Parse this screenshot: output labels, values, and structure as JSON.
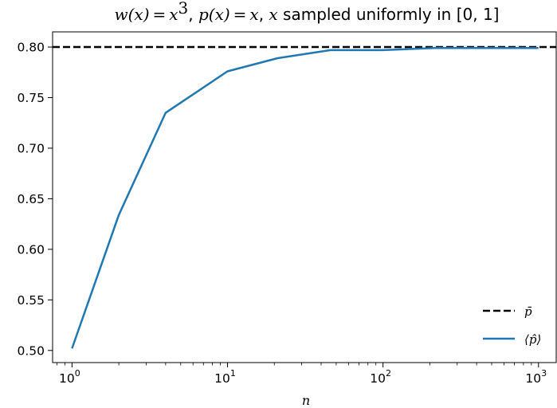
{
  "chart_data": {
    "type": "line",
    "title": {
      "w_part": "w(x) = x",
      "w_exp": "3",
      "sep1": ", ",
      "p_part": "p(x) = x",
      "sep2": ", ",
      "x_var": "x",
      "rest": " sampled uniformly in [0, 1]"
    },
    "xlabel": "n",
    "ylabel": "",
    "xscale": "log",
    "xlim": [
      0.75,
      1300
    ],
    "ylim": [
      0.488,
      0.815
    ],
    "x_ticks": [
      {
        "base": "10",
        "exp": "0",
        "value": 1
      },
      {
        "base": "10",
        "exp": "1",
        "value": 10
      },
      {
        "base": "10",
        "exp": "2",
        "value": 100
      },
      {
        "base": "10",
        "exp": "3",
        "value": 1000
      }
    ],
    "y_ticks": [
      {
        "label": "0.50",
        "value": 0.5
      },
      {
        "label": "0.55",
        "value": 0.55
      },
      {
        "label": "0.60",
        "value": 0.6
      },
      {
        "label": "0.65",
        "value": 0.65
      },
      {
        "label": "0.70",
        "value": 0.7
      },
      {
        "label": "0.75",
        "value": 0.75
      },
      {
        "label": "0.80",
        "value": 0.8
      }
    ],
    "reference_line": {
      "name": "p̄",
      "y": 0.8,
      "color": "#000000",
      "style": "dashed"
    },
    "series": [
      {
        "name": "⟨p̂⟩",
        "color": "#1f77b4",
        "x": [
          1,
          2,
          4,
          10,
          21,
          46,
          100,
          215,
          464,
          1000
        ],
        "y": [
          0.502,
          0.634,
          0.735,
          0.776,
          0.789,
          0.797,
          0.797,
          0.799,
          0.799,
          0.799
        ]
      }
    ],
    "grid": false,
    "legend_position": "lower-right"
  }
}
